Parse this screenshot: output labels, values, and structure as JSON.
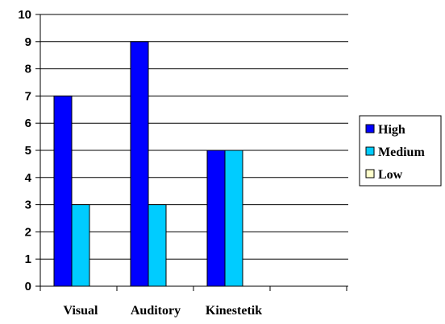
{
  "chart_data": {
    "type": "bar",
    "categories": [
      "Visual",
      "Auditory",
      "Kinestetik"
    ],
    "series": [
      {
        "name": "High",
        "values": [
          7,
          9,
          5
        ],
        "color": "#0000ff"
      },
      {
        "name": "Medium",
        "values": [
          3,
          3,
          5
        ],
        "color": "#00ccff"
      },
      {
        "name": "Low",
        "values": [
          0,
          0,
          0
        ],
        "color": "#ffffcc"
      }
    ],
    "ylim": [
      0,
      10
    ],
    "yticks": [
      "0",
      "1",
      "2",
      "3",
      "4",
      "5",
      "6",
      "7",
      "8",
      "9",
      "10"
    ],
    "grid": true,
    "legend_position": "right",
    "title": "",
    "xlabel": "",
    "ylabel": ""
  }
}
